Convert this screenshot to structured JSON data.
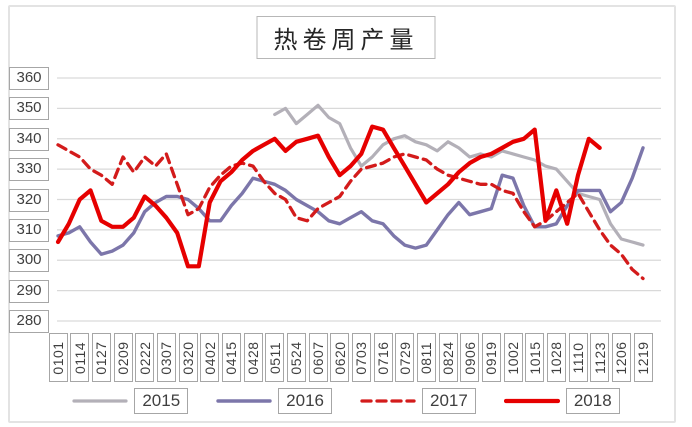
{
  "title": "热卷周产量",
  "y_axis": {
    "ticks": [
      360,
      350,
      340,
      330,
      320,
      310,
      300,
      290,
      280
    ]
  },
  "legend": {
    "items": [
      "2015",
      "2016",
      "2017",
      "2018"
    ]
  },
  "colors": {
    "grid": "#d9d9d9",
    "box_border": "#a6a6a6",
    "text": "#3f3f3f",
    "frame": "#e3e3e3",
    "series_2015": "#b3b0b8",
    "series_2016": "#7c76aa",
    "series_2017": "#d31b1b",
    "series_2018": "#e60000"
  },
  "chart_data": {
    "type": "line",
    "title": "热卷周产量",
    "xlabel": "",
    "ylabel": "",
    "ylim": [
      280,
      360
    ],
    "y_tick_step": 10,
    "grid": true,
    "legend_position": "bottom",
    "x_label_every": 2,
    "categories": [
      "0101",
      "0114",
      "0127",
      "0209",
      "0222",
      "0307",
      "0320",
      "0402",
      "0415",
      "0428",
      "0511",
      "0524",
      "0607",
      "0620",
      "0703",
      "0716",
      "0729",
      "0811",
      "0824",
      "0906",
      "0919",
      "1002",
      "1015",
      "1028",
      "1110",
      "1123",
      "1206",
      "1219"
    ],
    "series": [
      {
        "name": "2015",
        "color": "#b3b0b8",
        "dash": "solid",
        "width": 3.2,
        "values": [
          null,
          null,
          null,
          null,
          null,
          null,
          null,
          null,
          null,
          null,
          null,
          null,
          null,
          null,
          null,
          null,
          null,
          null,
          null,
          null,
          348,
          350,
          345,
          348,
          351,
          347,
          345,
          337,
          331,
          334,
          338,
          340,
          341,
          339,
          338,
          336,
          339,
          337,
          334,
          335,
          334,
          336,
          335,
          334,
          333,
          331,
          330,
          326,
          322,
          321,
          320,
          312,
          307,
          306,
          305
        ]
      },
      {
        "name": "2016",
        "color": "#7c76aa",
        "dash": "solid",
        "width": 3.4,
        "values": [
          308,
          309,
          311,
          306,
          302,
          303,
          305,
          309,
          316,
          319,
          321,
          321,
          320,
          317,
          313,
          313,
          318,
          322,
          327,
          326,
          325,
          323,
          320,
          318,
          316,
          313,
          312,
          314,
          316,
          313,
          312,
          308,
          305,
          304,
          305,
          310,
          315,
          319,
          315,
          316,
          317,
          328,
          327,
          318,
          311,
          311,
          312,
          318,
          323,
          323,
          323,
          316,
          319,
          327,
          337
        ]
      },
      {
        "name": "2017",
        "color": "#d31b1b",
        "dash": "dashed",
        "width": 3.3,
        "values": [
          338,
          336,
          334,
          330,
          328,
          325,
          334,
          329,
          334,
          331,
          335,
          325,
          315,
          317,
          324,
          328,
          331,
          332,
          331,
          326,
          322,
          320,
          314,
          313,
          317,
          319,
          321,
          326,
          330,
          331,
          332,
          334,
          335,
          334,
          333,
          330,
          328,
          327,
          326,
          325,
          325,
          323,
          322,
          316,
          311,
          313,
          316,
          319,
          322,
          316,
          310,
          305,
          302,
          297,
          294
        ]
      },
      {
        "name": "2018",
        "color": "#e60000",
        "dash": "solid",
        "width": 4.2,
        "values": [
          306,
          312,
          320,
          323,
          313,
          311,
          311,
          314,
          321,
          318,
          314,
          309,
          298,
          298,
          319,
          326,
          329,
          333,
          336,
          338,
          340,
          336,
          339,
          340,
          341,
          334,
          328,
          331,
          335,
          344,
          343,
          337,
          331,
          325,
          319,
          322,
          325,
          329,
          332,
          334,
          335,
          337,
          339,
          340,
          343,
          313,
          323,
          312,
          328,
          340,
          337,
          null,
          null,
          null,
          null
        ]
      }
    ]
  }
}
